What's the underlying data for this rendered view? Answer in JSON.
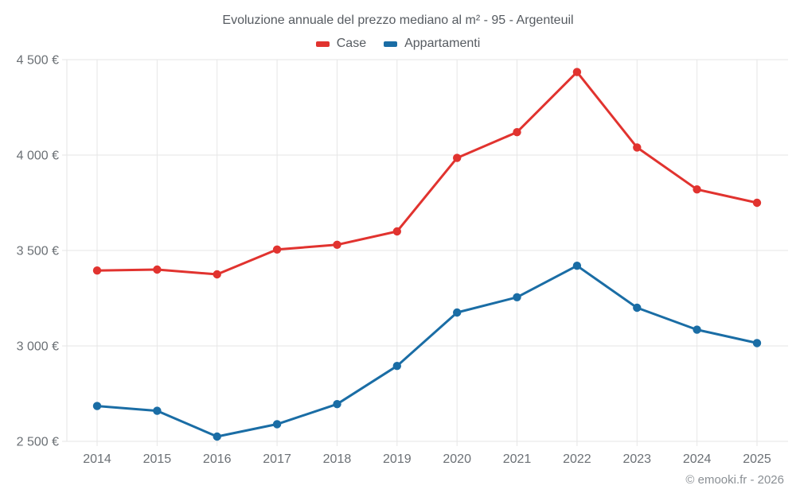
{
  "title": "Evoluzione annuale del prezzo mediano al m² - 95 - Argenteuil",
  "footer": "© emooki.fr - 2026",
  "legend": {
    "items": [
      {
        "label": "Case",
        "color": "#e1332f"
      },
      {
        "label": "Appartamenti",
        "color": "#1a6da5"
      }
    ]
  },
  "chart_data": {
    "type": "line",
    "title": "Evoluzione annuale del prezzo mediano al m² - 95 - Argenteuil",
    "categories": [
      "2014",
      "2015",
      "2016",
      "2017",
      "2018",
      "2019",
      "2020",
      "2021",
      "2022",
      "2023",
      "2024",
      "2025"
    ],
    "series": [
      {
        "name": "Case",
        "color": "#e1332f",
        "values": [
          3395,
          3400,
          3375,
          3505,
          3530,
          3600,
          3985,
          4120,
          4435,
          4040,
          3820,
          3750
        ]
      },
      {
        "name": "Appartamenti",
        "color": "#1a6da5",
        "values": [
          2685,
          2660,
          2525,
          2590,
          2695,
          2895,
          3175,
          3255,
          3420,
          3200,
          3085,
          3015
        ]
      }
    ],
    "xlabel": "",
    "ylabel": "",
    "ylim": [
      2500,
      4500
    ],
    "ytick_step": 500,
    "ytick_labels": [
      "2 500 €",
      "3 000 €",
      "3 500 €",
      "4 000 €",
      "4 500 €"
    ],
    "yunit": "€",
    "grid": true,
    "legend_position": "top",
    "grid_color": "#e6e6e6",
    "tick_text_color": "#6b7075"
  }
}
